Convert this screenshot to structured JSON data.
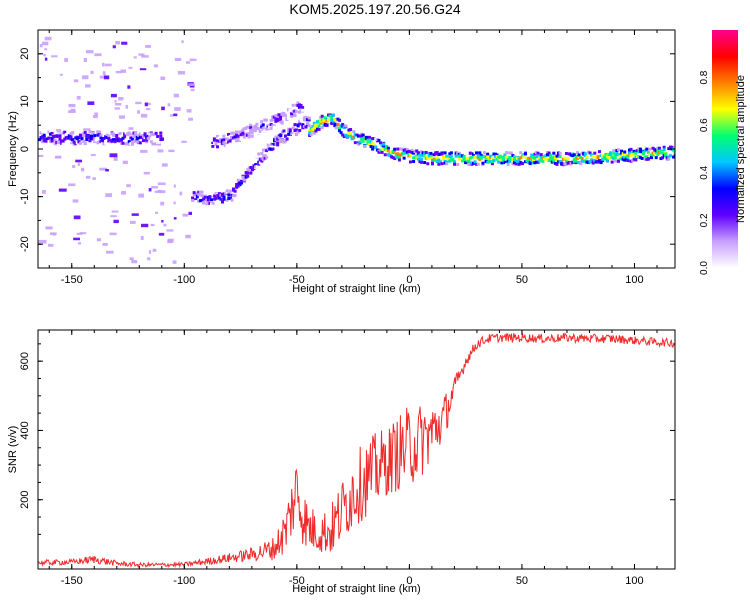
{
  "title": "KOM5.2025.197.20.56.G24",
  "colors": {
    "line": "#ef2b2b",
    "axis": "#000000",
    "background": "#ffffff"
  },
  "chart_data": [
    {
      "type": "heatmap",
      "xlabel": "Height of straight line (km)",
      "ylabel": "Frequency (Hz)",
      "xlim": [
        -165,
        118
      ],
      "ylim": [
        -25,
        25
      ],
      "x_ticks": [
        -150,
        -100,
        -50,
        0,
        50,
        100
      ],
      "x_tick_labels": [
        "-150",
        "-100",
        "-50",
        "0",
        "50",
        "100"
      ],
      "y_ticks": [
        -20,
        -10,
        0,
        10,
        20
      ],
      "y_tick_labels": [
        "-20",
        "-10",
        "0",
        "10",
        "20"
      ],
      "grid": false,
      "colorbar": {
        "label": "Normalized spectral amplitude",
        "range": [
          0,
          1
        ],
        "ticks": [
          0.0,
          0.2,
          0.4,
          0.6,
          0.8
        ],
        "tick_labels": [
          "0.0",
          "0.2",
          "0.4",
          "0.6",
          "0.8"
        ],
        "colormap": [
          "#ffffff",
          "#c8a0ff",
          "#6000ff",
          "#0000ff",
          "#00c8ff",
          "#00ff70",
          "#ffff00",
          "#ff8000",
          "#ff0000",
          "#ff0090"
        ]
      },
      "traces": [
        {
          "x": [
            -165,
            -150,
            -140,
            -130,
            -120,
            -110
          ],
          "y": [
            2.5,
            2.2,
            2.6,
            2.0,
            2.4,
            2.2
          ],
          "amplitude": 0.3
        },
        {
          "x": [
            -97,
            -90,
            -80,
            -70,
            -60,
            -50,
            -45
          ],
          "y": [
            -10,
            -10.5,
            -10,
            -3.5,
            1.5,
            4.5,
            6
          ],
          "amplitude": 0.3
        },
        {
          "x": [
            -88,
            -80,
            -70,
            -60,
            -52,
            -48
          ],
          "y": [
            1.5,
            2,
            4,
            6,
            8,
            9
          ],
          "amplitude": 0.2
        },
        {
          "x": [
            -45,
            -40,
            -35,
            -30,
            -25,
            -20,
            -15,
            -10,
            -5,
            0,
            10,
            25,
            50,
            75,
            100,
            118
          ],
          "y": [
            4,
            5.5,
            6.5,
            4,
            2.5,
            1.5,
            0.8,
            -0.5,
            -1.2,
            -1.5,
            -2,
            -2,
            -2,
            -2,
            -1.2,
            -0.8
          ],
          "amplitude": 0.7
        }
      ]
    },
    {
      "type": "line",
      "xlabel": "Height of straight line (km)",
      "ylabel": "SNR (v/v)",
      "xlim": [
        -165,
        118
      ],
      "ylim": [
        0,
        690
      ],
      "x_ticks": [
        -150,
        -100,
        -50,
        0,
        50,
        100
      ],
      "x_tick_labels": [
        "-150",
        "-100",
        "-50",
        "0",
        "50",
        "100"
      ],
      "y_ticks": [
        200,
        400,
        600
      ],
      "y_tick_labels": [
        "200",
        "400",
        "600"
      ],
      "grid": false,
      "series": [
        {
          "x": [
            -165,
            -150,
            -140,
            -130,
            -120,
            -110,
            -100,
            -90,
            -80,
            -70,
            -60,
            -55,
            -50,
            -48,
            -45,
            -40,
            -35,
            -30,
            -25,
            -20,
            -15,
            -10,
            -5,
            0,
            5,
            10,
            15,
            20,
            25,
            30,
            35,
            40,
            50,
            60,
            70,
            80,
            90,
            100,
            110,
            118
          ],
          "y": [
            18,
            20,
            28,
            16,
            12,
            12,
            13,
            22,
            32,
            42,
            60,
            110,
            230,
            170,
            120,
            105,
            110,
            165,
            225,
            255,
            285,
            310,
            335,
            355,
            370,
            395,
            430,
            520,
            600,
            650,
            665,
            668,
            668,
            665,
            668,
            665,
            665,
            660,
            655,
            652
          ],
          "noise": [
            8,
            8,
            12,
            8,
            6,
            6,
            6,
            10,
            14,
            20,
            35,
            70,
            110,
            95,
            70,
            60,
            75,
            95,
            110,
            110,
            110,
            100,
            110,
            120,
            110,
            90,
            70,
            35,
            18,
            15,
            13,
            13,
            13,
            13,
            13,
            13,
            13,
            12,
            12,
            12
          ]
        }
      ]
    }
  ]
}
